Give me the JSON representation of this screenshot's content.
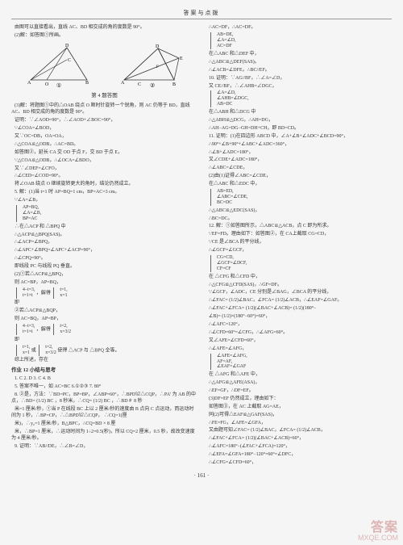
{
  "header": "答案与点拨",
  "footer": "· 161 ·",
  "watermark": {
    "top": "答案",
    "main": "MXQE.COM"
  },
  "fig": {
    "caption": "第 4 题答图",
    "labels": [
      "①",
      "②"
    ]
  },
  "left": [
    "由图可以直接看出，直线 AC、BD 相交成的角的度数是 90°。",
    "(2)解：如答图①所画。",
    "__FIG__",
    "(3)解：将题图①中的△OAB 绕点 O 顺时针旋转一个锐角，则 AC 仍等于 BD，直线 AC、BD 相交成的角的度数是 90°。",
    "证明：∵∠AOD=90°，∴∠AOD+∠BOC=90°，",
    "∵∠COA=∠BOD，",
    "又∵OC=DB，OA=OA，",
    "∴△COA≌△ODB，∴AC=BD。",
    "如答图②，延长 CA 交 OD 于点 F，交 BD 于点 E，",
    "∵△COA≌△ODB，∴∠OCA=∠BDO，",
    "又∵∠DEF=∠CFO，",
    "∴∠CED=∠COD=90°。",
    "将∠OAB 绕点 O 继续旋转更大的角时，结论仍然成立。",
    "5. 解：(1)当 t=1 时 AP=BQ=1 cm，BP=AC=3 cm。",
    "∵∠A=∠B，",
    "__BRACE1__",
    "  ∴在△ACP 和 △BPQ 中 ",
    "∴△ACP≌△BPQ(SAS)。",
    "∴∠ACP=∠BPQ，",
    "∴∠APC+∠BPQ=∠APC+∠ACP=90°，",
    "∴∠CPQ=90°。",
    "即线段 PC 与线段 PQ 垂直。",
    "(2)①若△ACP≌△BPQ，",
    "则 AC=BP，AP=BQ，",
    "__BRACE2__",
    "即 ",
    "②若△ACP≌△BQP，",
    "则 AC=BQ，AP=BP，",
    "__BRACE3__",
    "即 ",
    "__BRACE4__",
    "综上所述，存在 ",
    "__SECTION__",
    "1. C  2. D  3. C  4. B",
    "5. 答案不唯一，如 AC=BC  6.①②③  7. 80°",
    "8. ②是，方法：∵BD=PC，BP=BP，∠ABP=60°，∴BPD≌△CQP，∴PA' 为 AB 的中点，∴BD= (1/2) BC ，8 秒米，∴CQ= (1/2) BC ，∴BD∦ 8 秒",
    "米=1 厘米/秒，①当 P 在线段 BC 上以 2 厘米/秒的速度由 B 点向 C 点运动，而运动时间为 1 秒，∴BP=CP，∴△BPD≌△CQP， ∴CQ=1(厘",
    "米)，∴y₀=1 厘米/秒，B△BPC，∴CQ=BD × 8 厘",
    "米，∴BP=1 厘米，∴运动时间为 1÷2=0.5(秒)，所以 CQ=2 厘米，0.5 秒，故改变速度为 4 厘米/秒。",
    "9. 证明：∵AB//DE，∴∠B=∠D，"
  ],
  "left_braces": {
    "b1": [
      "AP=BQ,",
      "∠A=∠B,",
      "BP=AC"
    ],
    "b2": [
      "4−t=3,",
      "t=1×t"
    ],
    "b2r": [
      "t=1,",
      "x=1"
    ],
    "b3": [
      "4−t=3,",
      "t=1×t"
    ],
    "b3r": [
      "t=2,",
      "x=3/2"
    ],
    "b4a": [
      "t=1,",
      "x=1"
    ],
    "b4b": [
      "t=2,",
      "x=3/2"
    ]
  },
  "section_title": "作业 12  小结与思考",
  "right": [
    "∴AC=DF，∴AC=DF。",
    "__BRACE_R1__",
    "在△ABC 和△DEF 中，",
    "∴△ABC≌△DEF(SAS)。",
    "∴∠ACB=∠DFE，∴BC//EF。",
    "10. 证明：∵AG//BF，∴∠A=∠D，",
    "又 CE//BF，∴∠AHB=∠DGC，",
    "__BRACE_R2__",
    "在△ABH 和△DCG 中 ",
    "∴△ABH≌△DCG，∴AH=DG，",
    "∴AH−AG=DG−GH=DH+CH，即 BD=CD。",
    "11. 证明：(1)在四边形 ABCD 中，∠A+∠B+∠ADC+∠BCD=90°，",
    "∴90°+∠B+90°+∠ABC+∠ADC=360°，",
    "∴∠B+∠ADC=180°，",
    "又∠CDE+∠ADC=180°，",
    "∴∠ABC=∠CDE，",
    "(2)由(1)证得∠ABC=∠CDE，",
    "在△ABC 和△EDC 中，",
    "__BRACE_R3__",
    "∴△ABC≌△EDC(SAS)，",
    "∴BC=DC。",
    "12. 解：①如答图所示，△ABC≌△ACB，点 C 即为所求。",
    "∵EF=FD。理由如下：如答图②，在 CA上截取 CG=CD，",
    "∵CE 是∠BCA 的平分线，",
    "∴∠GCF=∠GCF，",
    "__BRACE_R4__",
    "在 △CFG 和△CFD 中，",
    "∴△CFG≌△CFD(SAS)，∴GF=DF。",
    "∵∠GCF，∠ADC，CE 分别是∠BAG，∠BCA 的平分线，",
    "∴∠FAC= (1/2)∠BAC，∠FCA= (1/2)∠ACB，∴∠EAF=∠GAF。",
    "∴∠FAC+∠FCA= (1/2)(∠BAC+∠ACB)= (1/2)(180°−",
    "∠B)= (1/2)×(180°−60°)=60°，",
    "∴∠AFC=120°，",
    "∴∠CFD=60°=∠CFG，∴∠AFG=60°。",
    "又∠AFE=∠CFD=60°，",
    "∴∠AFE=∠AFG，",
    "__BRACE_R5__",
    "在 △AFG 和△AFE 中，",
    "∴△AFG≌△AFE(ASA)，",
    "∴EF=GF，∴DF=EF。",
    "(3)DF=EF 仍然成立，理由如下：",
    "如答图③，在 AC 上截取 AG=AE，",
    "同(2)可得△EAF≌△GAF(SAS)，",
    "∴FE=FG，∠AFE=∠GFA，",
    "又由题可知∠FAC= (1/2)∠BAC，∠FCA= (1/2)∠ACB，",
    "∴∠FAC+∠FCA= (1/2)(∠BAC+∠ACB)=60°，",
    "∴∠AFC=180°−(∠FAC+∠FCA)=120°，",
    "∴∠EFA=∠GFA=180°−120°=60°=∠DFC，",
    "∴∠CFG=∠CFD=60°，"
  ],
  "right_braces": {
    "r1": [
      "AB=DE,",
      "∠A=∠D,",
      "AC=DF"
    ],
    "r2": [
      "∠A=∠D,",
      "∠AHB=∠DGC,",
      "AB=DC"
    ],
    "r3": [
      "AB=ED,",
      "∠ABC=∠CDE,",
      "BC=DC"
    ],
    "r4": [
      "CG=CD,",
      "∠GCF=∠DCF,",
      "CF=CF"
    ],
    "r5": [
      "∠AFE=∠AFG,",
      "AF=AF,",
      "∠EAF=∠GAF"
    ]
  }
}
